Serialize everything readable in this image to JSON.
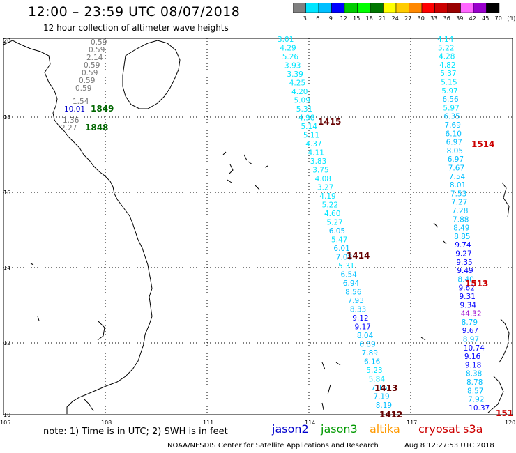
{
  "header": {
    "title": "12:00 – 23:59 UTC 08/07/2018",
    "subtitle": "12 hour collection of altimeter wave heights"
  },
  "colorbar": {
    "colors": [
      "#808080",
      "#00e5ff",
      "#00bfff",
      "#0000ff",
      "#00cc00",
      "#00ff00",
      "#007700",
      "#ffff00",
      "#ffcc00",
      "#ff8800",
      "#ff0000",
      "#cc0000",
      "#990000",
      "#ff66ff",
      "#9900cc",
      "#000000"
    ],
    "labels": [
      "3",
      "6",
      "9",
      "12",
      "15",
      "18",
      "21",
      "24",
      "27",
      "30",
      "33",
      "36",
      "39",
      "42",
      "45",
      "70",
      "(ft)"
    ]
  },
  "axes": {
    "lon_labels": [
      "105",
      "108",
      "111",
      "114",
      "117",
      "120"
    ],
    "lat_labels": [
      "20",
      "18",
      "16",
      "14",
      "12",
      "10"
    ]
  },
  "observations": {
    "gray": [
      "0.59",
      "0.59",
      "2.14",
      "0.59",
      "0.59",
      "0.59",
      "0.59",
      "1.54",
      "1.36",
      "2.27"
    ],
    "gray_blue": "10.01",
    "track_1415": [
      "3.01",
      "4.29",
      "5.26",
      "3.93",
      "3.39",
      "4.25",
      "4.20",
      "5.09",
      "5.31",
      "4.98",
      "5.14",
      "5.11",
      "4.37",
      "4.11",
      "3.83",
      "3.75",
      "4.08",
      "3.27",
      "4.19",
      "5.22",
      "4.60",
      "5.27",
      "6.05",
      "5.47",
      "6.01",
      "7.08",
      "5.31",
      "6.54",
      "6.94",
      "8.56",
      "7.93",
      "8.33",
      "9.12",
      "9.17",
      "8.04",
      "6.89",
      "7.89",
      "6.16",
      "5.23",
      "5.84",
      "7.16",
      "7.19",
      "8.19"
    ],
    "track_1514": [
      "4.14",
      "5.22",
      "4.28",
      "4.82",
      "5.37",
      "5.15",
      "5.97",
      "6.56",
      "5.97",
      "6.35",
      "7.69",
      "6.10",
      "6.97",
      "8.05",
      "6.97",
      "7.67",
      "7.54",
      "8.01",
      "7.53",
      "7.27",
      "7.28",
      "7.88",
      "8.49",
      "8.85",
      "9.74",
      "9.27",
      "9.35",
      "9.49",
      "8.40",
      "9.62",
      "9.31",
      "9.34",
      "44.32",
      "8.79",
      "9.67",
      "8.97",
      "10.74",
      "9.16",
      "9.18",
      "8.38",
      "8.78",
      "8.57",
      "7.92",
      "10.37"
    ]
  },
  "passes": {
    "p1849": "1849",
    "p1848": "1848",
    "p1415": "1415",
    "p1414": "1414",
    "p1413": "1413",
    "p1412": "1412",
    "p1514": "1514",
    "p1513": "1513",
    "p151x": "151"
  },
  "footer": {
    "note": "note: 1) Time is in UTC; 2) SWH is in feet",
    "legend": [
      {
        "label": "jason2",
        "color": "#0000cc"
      },
      {
        "label": "jason3",
        "color": "#009900"
      },
      {
        "label": "altika",
        "color": "#ff9900"
      },
      {
        "label": "cryosat s3a",
        "color": "#cc0000"
      }
    ],
    "credit": "NOAA/NESDIS Center for Satellite Applications and Research",
    "stamp": "Aug  8 12:27:53 UTC 2018"
  }
}
